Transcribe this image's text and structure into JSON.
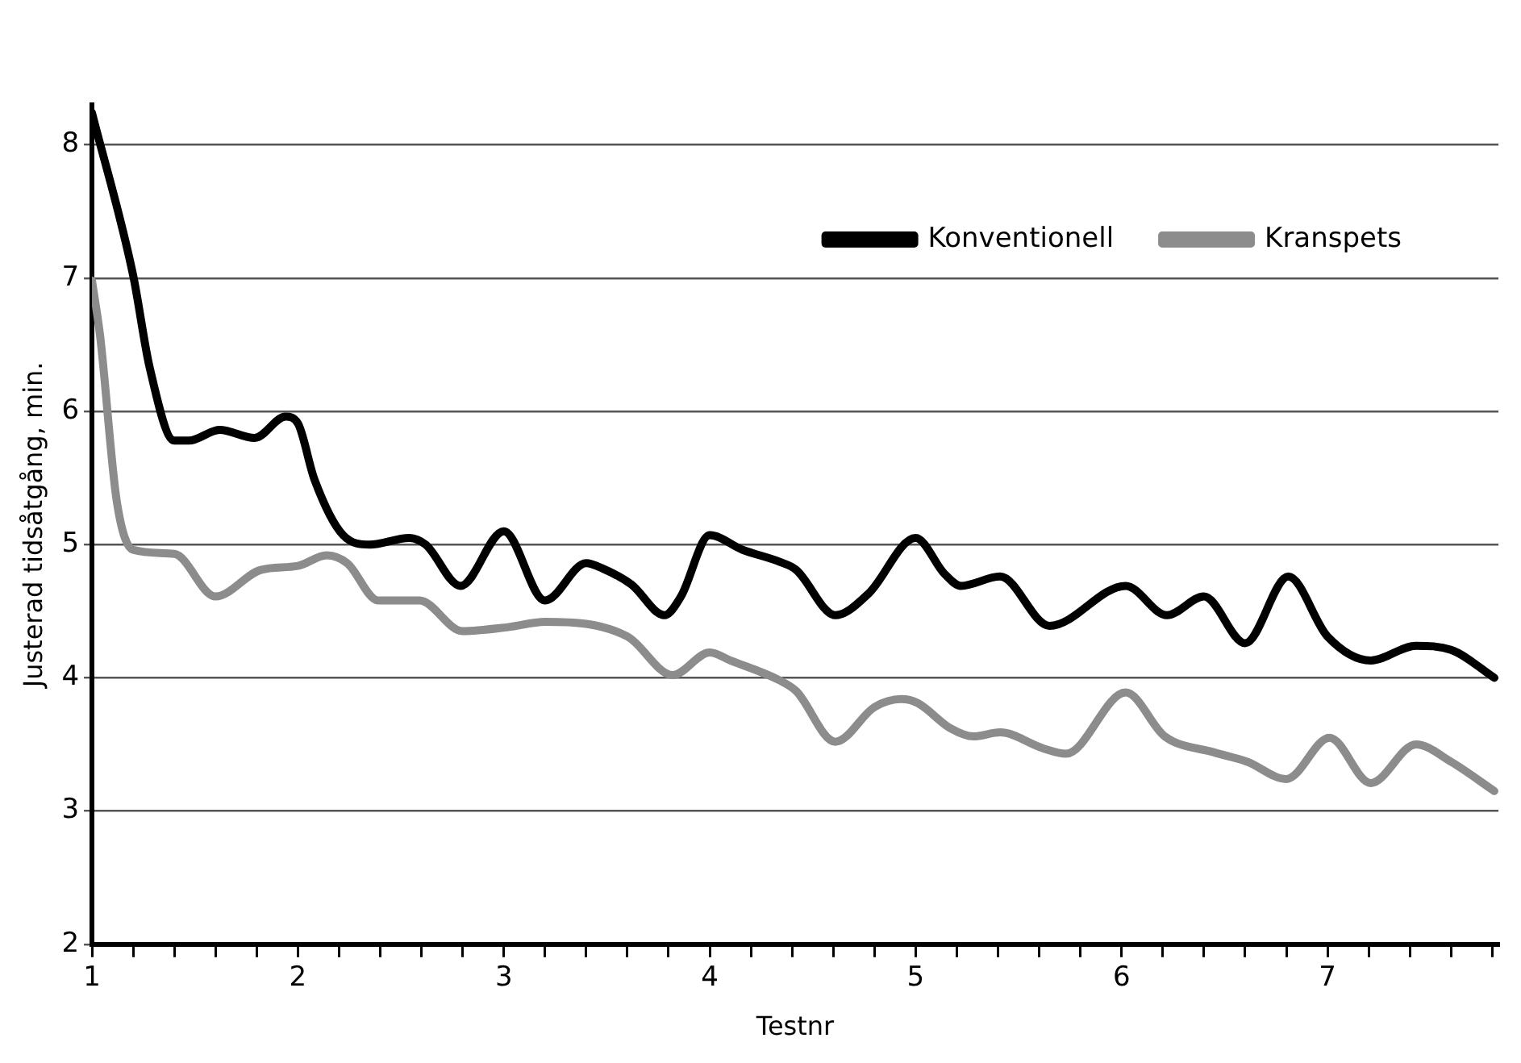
{
  "chart_data": {
    "type": "line",
    "xlabel": "Testnr",
    "ylabel": "Justerad tidsåtgång, min.",
    "xlim": [
      1,
      7.83
    ],
    "ylim": [
      2,
      8.3
    ],
    "xticks": [
      1,
      {
        "value": 1.2,
        "label": null
      },
      {
        "value": 1.4,
        "label": null
      },
      {
        "value": 1.6,
        "label": null
      },
      {
        "value": 1.8,
        "label": null
      },
      2,
      {
        "value": 2.2,
        "label": null
      },
      {
        "value": 2.4,
        "label": null
      },
      {
        "value": 2.6,
        "label": null
      },
      {
        "value": 2.8,
        "label": null
      },
      3,
      {
        "value": 3.2,
        "label": null
      },
      {
        "value": 3.4,
        "label": null
      },
      {
        "value": 3.6,
        "label": null
      },
      {
        "value": 3.8,
        "label": null
      },
      4,
      {
        "value": 4.2,
        "label": null
      },
      {
        "value": 4.4,
        "label": null
      },
      {
        "value": 4.6,
        "label": null
      },
      {
        "value": 4.8,
        "label": null
      },
      5,
      {
        "value": 5.2,
        "label": null
      },
      {
        "value": 5.4,
        "label": null
      },
      {
        "value": 5.6,
        "label": null
      },
      {
        "value": 5.8,
        "label": null
      },
      6,
      {
        "value": 6.2,
        "label": null
      },
      {
        "value": 6.4,
        "label": null
      },
      {
        "value": 6.6,
        "label": null
      },
      {
        "value": 6.8,
        "label": null
      },
      7,
      {
        "value": 7.2,
        "label": null
      },
      {
        "value": 7.4,
        "label": null
      },
      {
        "value": 7.6,
        "label": null
      },
      {
        "value": 7.8,
        "label": null
      }
    ],
    "yticks": [
      2,
      3,
      4,
      5,
      6,
      7,
      8
    ],
    "grid": "y",
    "legend": "top right",
    "marker": "none",
    "line_style": "solid",
    "series": [
      {
        "name": "Konventionell",
        "color": "#000000",
        "x": [
          1.0,
          1.2,
          1.28,
          1.4,
          1.47,
          1.62,
          1.79,
          1.94,
          2.0,
          2.08,
          2.22,
          2.35,
          2.54,
          2.62,
          2.79,
          3.0,
          3.2,
          3.4,
          3.48,
          3.62,
          3.78,
          3.86,
          4.0,
          4.16,
          4.34,
          4.42,
          4.61,
          4.77,
          5.0,
          5.14,
          5.22,
          5.41,
          5.65,
          6.02,
          6.22,
          6.4,
          6.6,
          6.81,
          7.0,
          7.21,
          7.43,
          7.6,
          7.81
        ],
        "values": [
          8.24,
          7.02,
          6.33,
          5.78,
          5.78,
          5.86,
          5.8,
          5.96,
          5.91,
          5.49,
          5.07,
          5.0,
          5.05,
          5.0,
          4.69,
          5.1,
          4.58,
          4.86,
          4.82,
          4.7,
          4.47,
          4.61,
          5.07,
          4.96,
          4.87,
          4.81,
          4.47,
          4.63,
          5.05,
          4.78,
          4.69,
          4.76,
          4.39,
          4.69,
          4.47,
          4.61,
          4.26,
          4.76,
          4.31,
          4.13,
          4.24,
          4.21,
          4.0
        ]
      },
      {
        "name": "Kranspets",
        "color": "#8c8c8c",
        "x": [
          1.0,
          1.04,
          1.12,
          1.2,
          1.4,
          1.6,
          1.82,
          2.0,
          2.14,
          2.24,
          2.39,
          2.59,
          2.8,
          3.02,
          3.2,
          3.6,
          3.82,
          4.0,
          4.1,
          4.34,
          4.42,
          4.61,
          4.8,
          4.93,
          5.01,
          5.17,
          5.28,
          5.41,
          5.62,
          5.73,
          6.02,
          6.21,
          6.45,
          6.61,
          6.8,
          7.01,
          7.21,
          7.43,
          7.6,
          7.81
        ],
        "values": [
          6.98,
          6.56,
          5.33,
          4.96,
          4.93,
          4.61,
          4.81,
          4.84,
          4.92,
          4.86,
          4.58,
          4.58,
          4.35,
          4.38,
          4.42,
          4.31,
          4.02,
          4.19,
          4.13,
          3.98,
          3.9,
          3.52,
          3.78,
          3.84,
          3.81,
          3.62,
          3.56,
          3.59,
          3.47,
          3.43,
          3.89,
          3.56,
          3.44,
          3.37,
          3.24,
          3.55,
          3.21,
          3.5,
          3.37,
          3.15
        ]
      }
    ]
  }
}
